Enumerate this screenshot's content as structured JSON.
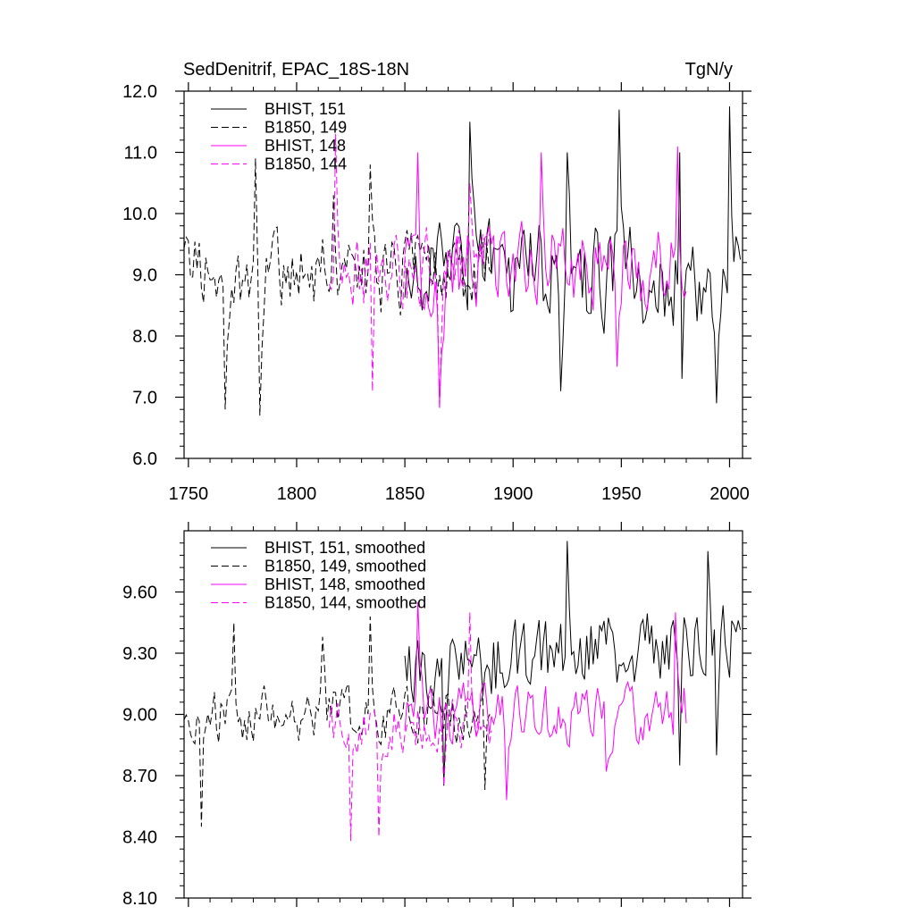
{
  "chart_data": [
    {
      "type": "line",
      "title_left": "SedDenitrif, EPAC_18S-18N",
      "title_right": "TgN/y",
      "xlim": [
        1748,
        2006
      ],
      "ylim": [
        6.0,
        12.0
      ],
      "x_ticks": [
        1750,
        1800,
        1850,
        1900,
        1950,
        2000
      ],
      "x_tick_labels": [
        "1750",
        "1800",
        "1850",
        "1900",
        "1950",
        "2000"
      ],
      "y_ticks": [
        6.0,
        7.0,
        8.0,
        9.0,
        10.0,
        11.0,
        12.0
      ],
      "y_tick_labels": [
        "6.0",
        "7.0",
        "8.0",
        "9.0",
        "10.0",
        "11.0",
        "12.0"
      ],
      "legend_position": "top-left",
      "series": [
        {
          "name": "BHIST, 151",
          "label": "BHIST, 151",
          "color": "#000000",
          "dash": "solid",
          "x_start": 1850,
          "x_end": 2005,
          "mean": 9.0,
          "amplitude": 1.15,
          "seed": 151,
          "peaks": [
            [
              1880,
              11.5
            ],
            [
              1925,
              11.0
            ],
            [
              1949,
              11.7
            ],
            [
              1977,
              11.0
            ],
            [
              2000,
              11.75
            ],
            [
              1994,
              6.9
            ],
            [
              1922,
              7.1
            ],
            [
              1978,
              7.3
            ]
          ]
        },
        {
          "name": "B1850, 149",
          "label": "B1850, 149",
          "color": "#000000",
          "dash": "dashed",
          "x_start": 1748,
          "x_end": 1890,
          "mean": 9.0,
          "amplitude": 0.9,
          "seed": 149,
          "peaks": [
            [
              1767,
              6.8
            ],
            [
              1783,
              6.7
            ],
            [
              1781,
              10.9
            ],
            [
              1817,
              10.3
            ],
            [
              1834,
              10.8
            ]
          ]
        },
        {
          "name": "BHIST, 148",
          "label": "BHIST, 148",
          "color": "#ff00ff",
          "dash": "solid",
          "x_start": 1850,
          "x_end": 1980,
          "mean": 9.1,
          "amplitude": 1.0,
          "seed": 148,
          "peaks": [
            [
              1856,
              11.0
            ],
            [
              1913,
              11.0
            ],
            [
              1976,
              11.1
            ],
            [
              1948,
              7.5
            ],
            [
              1866,
              6.9
            ]
          ]
        },
        {
          "name": "B1850, 144",
          "label": "B1850, 144",
          "color": "#ff00ff",
          "dash": "dashed",
          "x_start": 1815,
          "x_end": 1890,
          "mean": 9.1,
          "amplitude": 0.9,
          "seed": 144,
          "peaks": [
            [
              1818,
              11.3
            ],
            [
              1835,
              7.1
            ],
            [
              1866,
              6.8
            ],
            [
              1880,
              10.5
            ]
          ]
        }
      ]
    },
    {
      "type": "line",
      "xlim": [
        1748,
        2006
      ],
      "ylim": [
        8.1,
        9.9
      ],
      "x_ticks": [
        1750,
        1800,
        1850,
        1900,
        1950,
        2000
      ],
      "y_ticks": [
        8.1,
        8.4,
        8.7,
        9.0,
        9.3,
        9.6
      ],
      "y_tick_labels": [
        "8.10",
        "8.40",
        "8.70",
        "9.00",
        "9.30",
        "9.60"
      ],
      "legend_position": "top-left",
      "series": [
        {
          "name": "BHIST, 151, smoothed",
          "label": "BHIST, 151, smoothed",
          "color": "#000000",
          "dash": "solid",
          "x_start": 1850,
          "x_end": 2005,
          "mean": 9.2,
          "amplitude": 0.25,
          "trend": 0.0012,
          "seed": 251,
          "peaks": [
            [
              1925,
              9.85
            ],
            [
              1990,
              9.8
            ],
            [
              1977,
              8.75
            ],
            [
              1994,
              8.8
            ],
            [
              1868,
              8.65
            ]
          ]
        },
        {
          "name": "B1850, 149, smoothed",
          "label": "B1850, 149, smoothed",
          "color": "#000000",
          "dash": "dashed",
          "x_start": 1748,
          "x_end": 1890,
          "mean": 9.0,
          "amplitude": 0.18,
          "seed": 249,
          "peaks": [
            [
              1756,
              8.45
            ],
            [
              1771,
              9.45
            ],
            [
              1834,
              9.48
            ],
            [
              1887,
              8.63
            ],
            [
              1812,
              9.38
            ]
          ]
        },
        {
          "name": "BHIST, 148, smoothed",
          "label": "BHIST, 148, smoothed",
          "color": "#ff00ff",
          "dash": "solid",
          "x_start": 1850,
          "x_end": 1980,
          "mean": 9.0,
          "amplitude": 0.2,
          "seed": 248,
          "peaks": [
            [
              1856,
              9.55
            ],
            [
              1897,
              8.58
            ],
            [
              1943,
              8.72
            ],
            [
              1975,
              9.5
            ]
          ]
        },
        {
          "name": "B1850, 144, smoothed",
          "label": "B1850, 144, smoothed",
          "color": "#ff00ff",
          "dash": "dashed",
          "x_start": 1815,
          "x_end": 1890,
          "mean": 8.95,
          "amplitude": 0.18,
          "seed": 244,
          "peaks": [
            [
              1825,
              8.38
            ],
            [
              1838,
              8.4
            ],
            [
              1868,
              8.65
            ],
            [
              1880,
              9.5
            ]
          ]
        }
      ]
    }
  ]
}
